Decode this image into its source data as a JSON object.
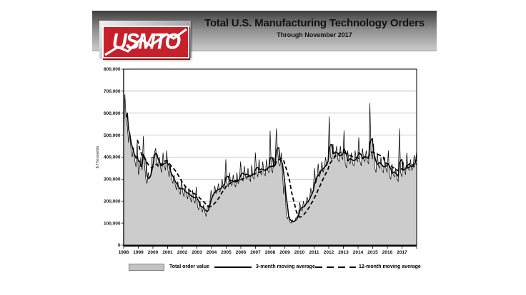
{
  "header": {
    "logo_text": "USMTO",
    "title": "Total U.S. Manufacturing Technology Orders",
    "subtitle": "Through November 2017"
  },
  "chart_data": {
    "type": "area",
    "title": "Total U.S. Manufacturing Technology Orders",
    "subtitle": "Through November 2017",
    "ylabel": "$ Thousands",
    "ylim": [
      0,
      800000
    ],
    "ytick_values": [
      0,
      100000,
      200000,
      300000,
      400000,
      500000,
      600000,
      700000,
      800000
    ],
    "ytick_labels": [
      "0",
      "100,000",
      "200,000",
      "300,000",
      "400,000",
      "500,000",
      "600,000",
      "700,000",
      "800,000"
    ],
    "x_years": [
      "1998",
      "1999",
      "2000",
      "2001",
      "2002",
      "2003",
      "2004",
      "2005",
      "2006",
      "2007",
      "2008",
      "2009",
      "2010",
      "2011",
      "2012",
      "2013",
      "2014",
      "2015",
      "2016",
      "2017"
    ],
    "months_start": "1998-01",
    "months_end": "2017-11",
    "grid": "horizontal",
    "legend_position": "bottom",
    "series": [
      {
        "name": "Total order value",
        "type": "area",
        "unit": "$ thousands, monthly",
        "values": [
          480000,
          685000,
          575000,
          540000,
          465000,
          510000,
          430000,
          400000,
          445000,
          385000,
          355000,
          470000,
          320000,
          355000,
          400000,
          340000,
          495000,
          365000,
          300000,
          280000,
          330000,
          305000,
          315000,
          400000,
          395000,
          420000,
          440000,
          380000,
          355000,
          400000,
          350000,
          330000,
          420000,
          360000,
          340000,
          430000,
          340000,
          310000,
          360000,
          300000,
          280000,
          320000,
          270000,
          250000,
          290000,
          245000,
          230000,
          300000,
          240000,
          220000,
          270000,
          230000,
          210000,
          260000,
          215000,
          195000,
          250000,
          205000,
          190000,
          265000,
          175000,
          160000,
          200000,
          170000,
          150000,
          185000,
          150000,
          130000,
          180000,
          170000,
          190000,
          250000,
          215000,
          230000,
          270000,
          235000,
          245000,
          280000,
          240000,
          255000,
          300000,
          260000,
          270000,
          390000,
          280000,
          265000,
          330000,
          280000,
          270000,
          320000,
          275000,
          265000,
          330000,
          280000,
          290000,
          380000,
          310000,
          290000,
          360000,
          310000,
          300000,
          350000,
          300000,
          290000,
          365000,
          310000,
          300000,
          420000,
          330000,
          310000,
          390000,
          330000,
          320000,
          380000,
          325000,
          315000,
          390000,
          340000,
          330000,
          520000,
          340000,
          330000,
          400000,
          360000,
          530000,
          430000,
          370000,
          360000,
          420000,
          330000,
          230000,
          280000,
          150000,
          120000,
          130000,
          105000,
          100000,
          115000,
          105000,
          110000,
          125000,
          130000,
          140000,
          195000,
          165000,
          155000,
          200000,
          175000,
          185000,
          220000,
          195000,
          210000,
          260000,
          230000,
          250000,
          350000,
          280000,
          300000,
          370000,
          310000,
          330000,
          380000,
          330000,
          350000,
          400000,
          360000,
          380000,
          585000,
          400000,
          390000,
          460000,
          400000,
          410000,
          450000,
          390000,
          380000,
          450000,
          400000,
          390000,
          520000,
          370000,
          350000,
          430000,
          380000,
          370000,
          420000,
          370000,
          360000,
          430000,
          390000,
          380000,
          490000,
          380000,
          360000,
          440000,
          390000,
          380000,
          430000,
          380000,
          370000,
          645000,
          420000,
          390000,
          460000,
          350000,
          330000,
          420000,
          360000,
          350000,
          400000,
          340000,
          330000,
          400000,
          350000,
          330000,
          430000,
          310000,
          300000,
          370000,
          320000,
          310000,
          350000,
          300000,
          290000,
          530000,
          330000,
          310000,
          380000,
          340000,
          320000,
          420000,
          350000,
          340000,
          390000,
          340000,
          350000,
          410000,
          370000,
          430000
        ]
      },
      {
        "name": "3-month moving average",
        "type": "line",
        "derived_from": "Total order value",
        "window": 3
      },
      {
        "name": "12-month moving average",
        "type": "line-dashed",
        "derived_from": "Total order value",
        "window": 12
      }
    ]
  },
  "legend": {
    "items": [
      {
        "label": "Total order value",
        "swatch": "area"
      },
      {
        "label": "3-month moving average",
        "swatch": "solid-line"
      },
      {
        "label": "12-month moving average",
        "swatch": "dashed-line"
      }
    ]
  },
  "colors": {
    "area_fill": "#cccccc",
    "data_line": "#000000",
    "grid": "#b3b3b3",
    "banner_top": "#3f3f3f",
    "banner_bottom": "#cbcbcb",
    "logo_red": "#c8202a"
  }
}
